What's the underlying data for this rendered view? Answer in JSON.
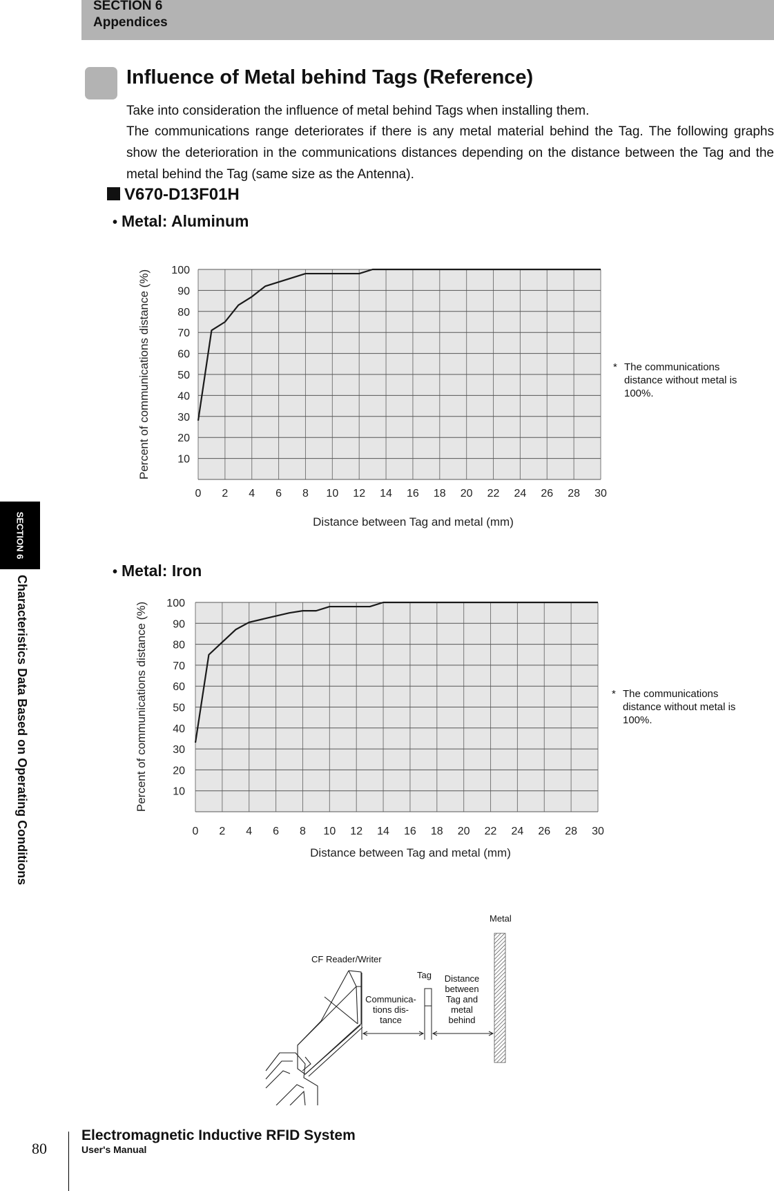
{
  "header": {
    "section": "SECTION 6",
    "chapter": "Appendices"
  },
  "side_tab": {
    "section": "SECTION 6",
    "title": "Characteristics Data Based on Operating Conditions"
  },
  "page_title": "Influence of Metal behind Tags (Reference)",
  "body": {
    "p1": "Take into consideration the influence of metal behind Tags when installing them.",
    "p2": "The communications range deteriorates if there is any metal material behind the Tag. The following graphs show the deterioration in the communications distances depending on the distance between the Tag and the metal behind the Tag (same size as the Antenna)."
  },
  "model": "V670-D13F01H",
  "sections": {
    "aluminum": "Metal: Aluminum",
    "iron": "Metal: Iron"
  },
  "note": {
    "star": "*",
    "text": "The communications distance without metal is 100%."
  },
  "chart_data": [
    {
      "type": "line",
      "title": "Metal: Aluminum",
      "xlabel": "Distance between Tag and metal (mm)",
      "ylabel": "Percent of communications distance (%)",
      "xlim": [
        0,
        30
      ],
      "ylim": [
        0,
        100
      ],
      "xticks": [
        0,
        2,
        4,
        6,
        8,
        10,
        12,
        14,
        16,
        18,
        20,
        22,
        24,
        26,
        28,
        30
      ],
      "yticks": [
        10,
        20,
        30,
        40,
        50,
        60,
        70,
        80,
        90,
        100
      ],
      "grid": true,
      "x": [
        0,
        1,
        2,
        3,
        4,
        5,
        8,
        12,
        13,
        30
      ],
      "values": [
        28,
        71,
        75,
        83,
        87,
        92,
        98,
        98,
        100,
        100
      ]
    },
    {
      "type": "line",
      "title": "Metal: Iron",
      "xlabel": "Distance between Tag and metal (mm)",
      "ylabel": "Percent of communications distance (%)",
      "xlim": [
        0,
        30
      ],
      "ylim": [
        0,
        100
      ],
      "xticks": [
        0,
        2,
        4,
        6,
        8,
        10,
        12,
        14,
        16,
        18,
        20,
        22,
        24,
        26,
        28,
        30
      ],
      "yticks": [
        10,
        20,
        30,
        40,
        50,
        60,
        70,
        80,
        90,
        100
      ],
      "grid": true,
      "x": [
        0,
        1,
        2,
        3,
        4,
        7,
        8,
        9,
        10,
        13,
        14,
        30
      ],
      "values": [
        33,
        75,
        81,
        87,
        90.5,
        95,
        96,
        96,
        98,
        98,
        100,
        100
      ]
    }
  ],
  "diagram": {
    "reader": "CF Reader/Writer",
    "tag": "Tag",
    "metal": "Metal",
    "comm_distance": [
      "Communica-",
      "tions dis-",
      "tance"
    ],
    "tag_metal_distance": [
      "Distance",
      "between",
      "Tag and",
      "metal",
      "behind"
    ]
  },
  "footer": {
    "page": "80",
    "title": "Electromagnetic Inductive RFID System",
    "subtitle": "User's Manual"
  }
}
